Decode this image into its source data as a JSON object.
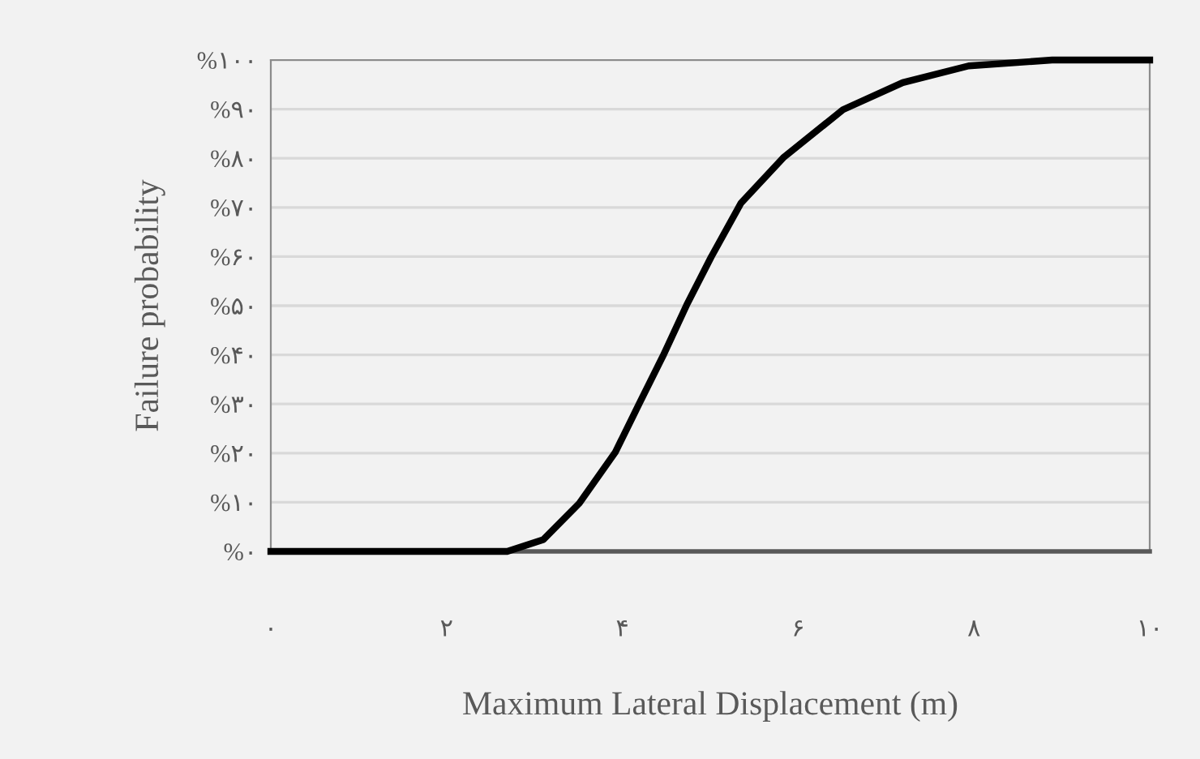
{
  "chart_data": {
    "type": "line",
    "xlabel": "Maximum Lateral Displacement (m)",
    "ylabel": "Failure probability",
    "series": [
      {
        "color": "#000000",
        "x": [
          0,
          2.5,
          2.69,
          3.1,
          3.51,
          3.92,
          4.19,
          4.46,
          4.73,
          5.01,
          5.35,
          5.83,
          6.51,
          7.19,
          7.94,
          8.89,
          10
        ],
        "values": [
          0,
          0,
          0,
          2.4,
          9.8,
          20.2,
          30,
          39.7,
          50.1,
          59.9,
          70.9,
          80.1,
          89.9,
          95.4,
          98.8,
          100,
          100
        ]
      }
    ],
    "xlim": [
      0,
      10
    ],
    "xticks": [
      {
        "value": 0,
        "label": "۰"
      },
      {
        "value": 2,
        "label": "۲"
      },
      {
        "value": 4,
        "label": "۴"
      },
      {
        "value": 6,
        "label": "۶"
      },
      {
        "value": 8,
        "label": "۸"
      },
      {
        "value": 10,
        "label": "۱۰"
      }
    ],
    "ylim": [
      0,
      100
    ],
    "yticks": [
      {
        "value": 0,
        "label": "%۰"
      },
      {
        "value": 10,
        "label": "%۱۰"
      },
      {
        "value": 20,
        "label": "%۲۰"
      },
      {
        "value": 30,
        "label": "%۳۰"
      },
      {
        "value": 40,
        "label": "%۴۰"
      },
      {
        "value": 50,
        "label": "%۵۰"
      },
      {
        "value": 60,
        "label": "%۶۰"
      },
      {
        "value": 70,
        "label": "%۷۰"
      },
      {
        "value": 80,
        "label": "%۸۰"
      },
      {
        "value": 90,
        "label": "%۹۰"
      },
      {
        "value": 100,
        "label": "%۱۰۰"
      }
    ],
    "grid": "y",
    "marker": "none",
    "line_style": "solid"
  }
}
